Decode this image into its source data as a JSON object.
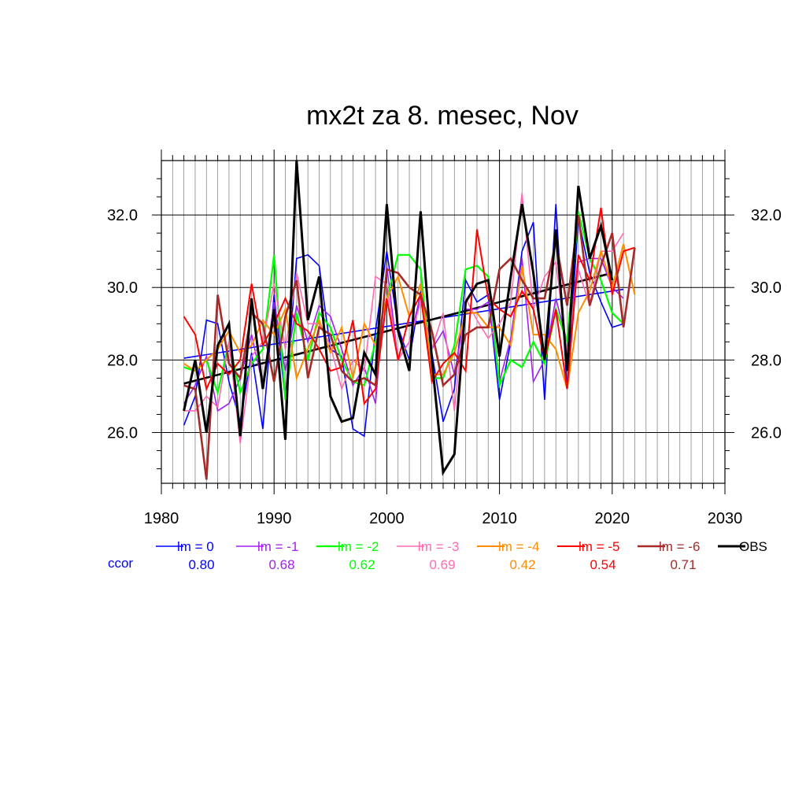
{
  "chart_data": {
    "type": "line",
    "title": "mx2t za 8. mesec, Nov",
    "xlabel": "",
    "ylabel": "",
    "xlim": [
      1980,
      2030
    ],
    "ylim": [
      24.6,
      33.5
    ],
    "x_ticks": [
      "1980",
      "1990",
      "2000",
      "2010",
      "2020",
      "2030"
    ],
    "y_ticks": [
      "26.0",
      "28.0",
      "30.0",
      "32.0"
    ],
    "grid": true,
    "legend_placement": "bottom",
    "ccor_label": "ccor",
    "series": [
      {
        "name": "lm = 0",
        "color": "#0000ff",
        "width": 1.6,
        "ccor": "0.80",
        "start": 1982,
        "values": [
          26.2,
          27.0,
          29.1,
          29.0,
          27.4,
          26.3,
          28.2,
          26.1,
          29.8,
          26.9,
          30.8,
          30.9,
          30.6,
          28.3,
          28.1,
          26.1,
          25.9,
          28.8,
          31.0,
          28.9,
          28.0,
          29.9,
          28.2,
          26.3,
          27.2,
          30.2,
          29.6,
          29.8,
          26.9,
          28.5,
          31.0,
          31.8,
          26.9,
          32.3,
          27.2,
          31.9,
          30.4,
          29.6,
          28.9,
          29.0
        ]
      },
      {
        "name": "lm = -1",
        "color": "#a020f0",
        "width": 1.6,
        "ccor": "0.68",
        "start": 1982,
        "values": [
          26.8,
          27.3,
          28.1,
          26.6,
          26.8,
          27.5,
          28.7,
          27.3,
          29.6,
          27.7,
          29.5,
          28.5,
          29.5,
          29.2,
          28.3,
          27.3,
          27.8,
          26.8,
          30.6,
          28.0,
          28.5,
          29.8,
          28.3,
          28.8,
          27.6,
          29.4,
          29.4,
          29.6,
          27.4,
          28.6,
          30.8,
          27.4,
          28.0,
          29.7,
          28.5,
          30.7,
          30.8,
          30.8,
          30.0,
          29.7
        ]
      },
      {
        "name": "lm = -2",
        "color": "#00ff00",
        "width": 2.2,
        "ccor": "0.62",
        "start": 1982,
        "values": [
          27.8,
          27.7,
          28.0,
          27.1,
          28.5,
          27.1,
          27.9,
          28.3,
          30.9,
          26.9,
          29.3,
          28.0,
          29.3,
          28.9,
          28.0,
          27.4,
          27.3,
          28.5,
          29.7,
          30.9,
          30.9,
          30.5,
          27.5,
          27.5,
          28.4,
          30.5,
          30.6,
          30.3,
          27.3,
          28.0,
          27.8,
          28.5,
          27.9,
          29.4,
          28.5,
          32.1,
          30.8,
          30.2,
          29.3,
          29.0
        ]
      },
      {
        "name": "lm = -3",
        "color": "#ff69b4",
        "width": 1.6,
        "ccor": "0.69",
        "start": 1982,
        "values": [
          26.6,
          26.6,
          27.0,
          26.7,
          28.5,
          25.7,
          28.1,
          28.5,
          30.1,
          28.3,
          30.4,
          29.0,
          29.0,
          28.4,
          27.2,
          28.0,
          27.7,
          30.3,
          30.1,
          28.0,
          28.5,
          29.6,
          28.3,
          29.3,
          26.6,
          29.7,
          29.1,
          28.6,
          29.0,
          29.6,
          32.6,
          29.4,
          30.3,
          30.7,
          28.2,
          30.5,
          29.5,
          31.0,
          31.0,
          31.5
        ]
      },
      {
        "name": "lm = -4",
        "color": "#ff8c00",
        "width": 2.0,
        "ccor": "0.42",
        "start": 1982,
        "values": [
          27.9,
          27.7,
          28.0,
          28.3,
          28.8,
          28.2,
          28.4,
          29.1,
          28.7,
          29.4,
          27.5,
          28.3,
          29.1,
          28.2,
          28.9,
          27.5,
          29.0,
          28.4,
          29.7,
          30.3,
          29.2,
          30.1,
          27.6,
          27.6,
          28.2,
          29.3,
          29.3,
          28.9,
          28.9,
          28.4,
          30.6,
          28.7,
          28.7,
          28.3,
          27.2,
          29.3,
          29.9,
          31.0,
          30.0,
          31.2,
          29.8
        ]
      },
      {
        "name": "lm = -5",
        "color": "#ff0000",
        "width": 2.0,
        "ccor": "0.54",
        "start": 1982,
        "values": [
          29.2,
          28.7,
          27.2,
          27.9,
          27.6,
          28.0,
          30.1,
          28.4,
          29.0,
          29.7,
          29.0,
          28.8,
          28.3,
          27.7,
          27.8,
          29.1,
          26.8,
          27.2,
          29.7,
          28.0,
          29.2,
          29.8,
          27.4,
          27.9,
          28.2,
          27.7,
          31.6,
          29.7,
          29.4,
          29.2,
          29.9,
          29.4,
          28.0,
          29.4,
          27.2,
          30.9,
          30.2,
          32.2,
          29.8,
          31.0,
          31.1
        ]
      },
      {
        "name": "lm = -6",
        "color": "#a52a2a",
        "width": 2.6,
        "ccor": "0.71",
        "start": 1982,
        "values": [
          27.3,
          27.2,
          24.7,
          29.8,
          27.9,
          27.5,
          29.3,
          29.0,
          27.4,
          29.2,
          30.2,
          27.5,
          28.9,
          28.7,
          27.7,
          27.4,
          27.5,
          27.3,
          30.5,
          30.4,
          30.0,
          29.8,
          28.8,
          27.3,
          27.6,
          28.7,
          28.9,
          28.9,
          30.5,
          30.8,
          30.2,
          29.7,
          29.7,
          31.3,
          29.5,
          32.0,
          29.5,
          30.6,
          31.5,
          28.9,
          31.1
        ]
      },
      {
        "name": "OBS",
        "color": "#000000",
        "width": 3.0,
        "ccor": "",
        "start": 1982,
        "values": [
          26.6,
          28.0,
          26.0,
          28.4,
          29.0,
          25.9,
          29.7,
          27.2,
          29.4,
          25.8,
          33.5,
          29.1,
          30.3,
          27.0,
          26.3,
          26.4,
          28.2,
          27.6,
          32.3,
          28.8,
          27.7,
          32.1,
          28.0,
          24.9,
          25.4,
          29.6,
          30.1,
          30.2,
          28.1,
          30.3,
          32.3,
          30.4,
          28.0,
          31.6,
          27.7,
          32.8,
          30.8,
          31.7,
          30.2
        ]
      }
    ],
    "trends": [
      {
        "name": "lm = 0 trend",
        "color": "#0000ff",
        "width": 1.6,
        "x": [
          1982,
          2021
        ],
        "y": [
          28.05,
          29.95
        ]
      },
      {
        "name": "OBS trend",
        "color": "#000000",
        "width": 2.6,
        "x": [
          1982,
          2020
        ],
        "y": [
          27.35,
          30.4
        ]
      }
    ]
  }
}
